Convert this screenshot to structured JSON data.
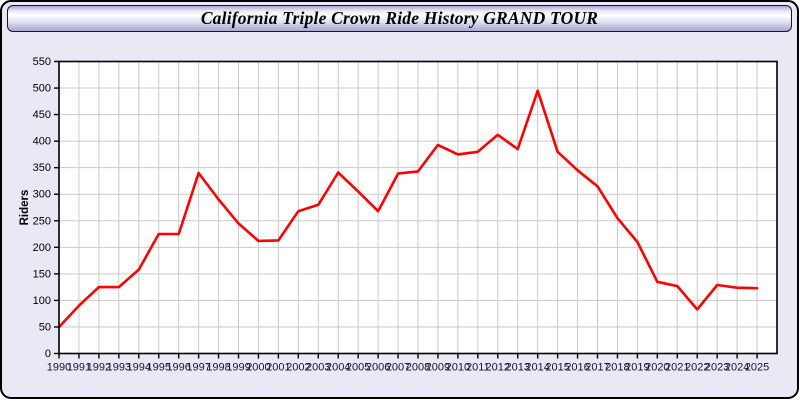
{
  "header": {
    "title": "California Triple Crown Ride History GRAND TOUR"
  },
  "chart_data": {
    "type": "line",
    "title": "California Triple Crown Ride History GRAND TOUR",
    "xlabel": "",
    "ylabel": "Riders",
    "x": [
      1990,
      1991,
      1992,
      1993,
      1994,
      1995,
      1996,
      1997,
      1998,
      1999,
      2000,
      2001,
      2002,
      2003,
      2004,
      2005,
      2006,
      2007,
      2008,
      2009,
      2010,
      2011,
      2012,
      2013,
      2014,
      2015,
      2016,
      2017,
      2018,
      2019,
      2020,
      2021,
      2022,
      2023,
      2024,
      2025
    ],
    "series": [
      {
        "name": "Riders",
        "values": [
          50,
          90,
          125,
          125,
          158,
          225,
          225,
          340,
          290,
          245,
          212,
          213,
          268,
          280,
          341,
          305,
          268,
          339,
          343,
          393,
          375,
          380,
          412,
          385,
          495,
          380,
          345,
          315,
          255,
          210,
          135,
          127,
          83,
          129,
          124,
          123
        ]
      }
    ],
    "ylim": [
      0,
      550
    ],
    "ytick_step": 50,
    "xlim": [
      1990,
      2026
    ],
    "grid": true,
    "legend_position": "none",
    "theme": {
      "line_color": "#ff0000",
      "grid_color": "#c9c9c9",
      "plot_bg": "#ffffff",
      "frame_color": "#000000",
      "x_tick_label_color": "#14142e",
      "y_tick_label_color": "#000000",
      "window_bg": "#e9e9f6"
    }
  }
}
